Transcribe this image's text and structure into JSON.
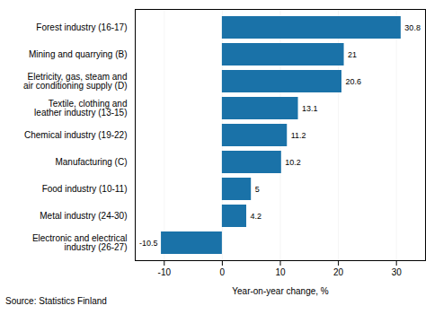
{
  "chart_data": {
    "type": "bar",
    "orientation": "horizontal",
    "categories": [
      "Electronic and electrical\nindustry (26-27)",
      "Metal industry (24-30)",
      "Food industry (10-11)",
      "Manufacturing (C)",
      "Chemical industry (19-22)",
      "Textile, clothing and\nleather industry (13-15)",
      "Eletricity, gas, steam and\nair conditioning supply (D)",
      "Mining and quarrying (B)",
      "Forest industry (16-17)"
    ],
    "values": [
      -10.5,
      4.2,
      5.0,
      10.2,
      11.2,
      13.1,
      20.6,
      21.0,
      30.8
    ],
    "color": "#1a72a8",
    "xlabel": "Year-on-year change, %",
    "source": "Source: Statistics Finland",
    "xlim": [
      -15,
      35
    ],
    "xticks": [
      -10,
      0,
      10,
      20,
      30
    ],
    "grid": true,
    "data_labels": true
  }
}
